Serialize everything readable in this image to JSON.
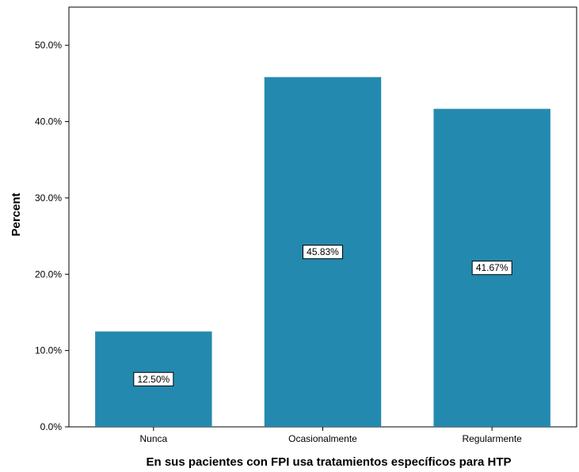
{
  "chart_data": {
    "type": "bar",
    "title": "",
    "xlabel": "En sus pacientes con FPI usa tratamientos específicos para HTP",
    "ylabel": "Percent",
    "categories": [
      "Nunca",
      "Ocasionalmente",
      "Regularmente"
    ],
    "values": [
      12.5,
      45.83,
      41.67
    ],
    "data_labels": [
      "12.50%",
      "45.83%",
      "41.67%"
    ],
    "ylim": [
      0,
      55
    ],
    "yticks": [
      0,
      10,
      20,
      30,
      40,
      50
    ],
    "ytick_labels": [
      "0.0%",
      "10.0%",
      "20.0%",
      "30.0%",
      "40.0%",
      "50.0%"
    ],
    "grid": false,
    "legend": "none",
    "bar_color": "#2489ae"
  }
}
